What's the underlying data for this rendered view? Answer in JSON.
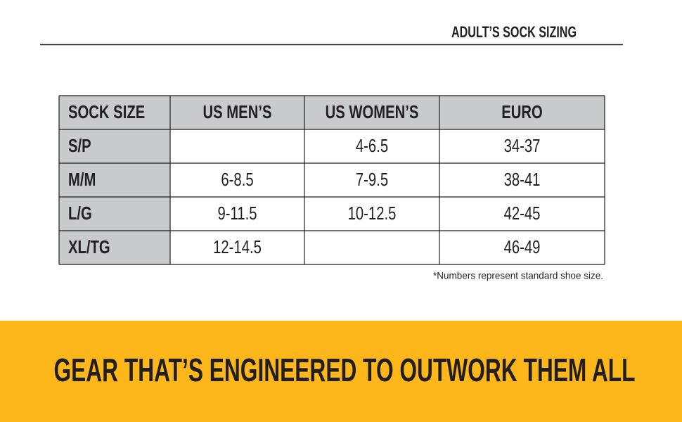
{
  "header": {
    "title": "ADULT’S SOCK SIZING"
  },
  "table": {
    "columns": [
      "SOCK SIZE",
      "US MEN’S",
      "US WOMEN’S",
      "EURO"
    ],
    "rows": [
      [
        "S/P",
        null,
        "4-6.5",
        "34-37"
      ],
      [
        "M/M",
        "6-8.5",
        "7-9.5",
        "38-41"
      ],
      [
        "L/G",
        "9-11.5",
        "10-12.5",
        "42-45"
      ],
      [
        "XL/TG",
        "12-14.5",
        null,
        "46-49"
      ]
    ]
  },
  "footnote": "*Numbers represent standard shoe size.",
  "banner": {
    "text": "GEAR THAT’S ENGINEERED TO OUTWORK THEM ALL"
  }
}
